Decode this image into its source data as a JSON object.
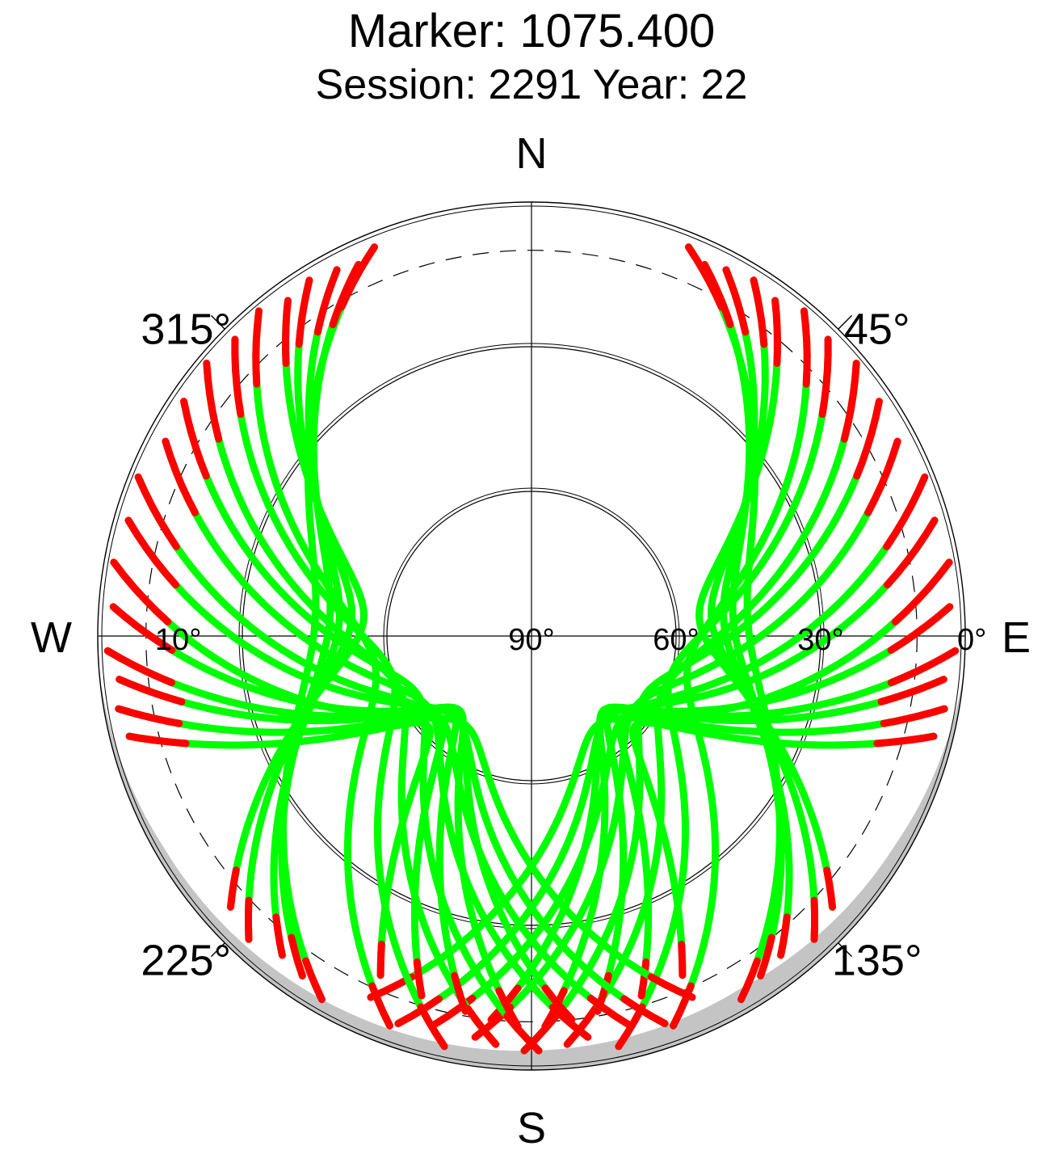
{
  "chart_data": {
    "type": "scatter",
    "projection": "polar-skyplot",
    "title": "Marker: 1075.400",
    "subtitle": "Session: 2291 Year: 22",
    "directions": {
      "north": "N",
      "south": "S",
      "east": "E",
      "west": "W"
    },
    "azimuth_labels": [
      {
        "azimuth": 315,
        "text": "315°"
      },
      {
        "azimuth": 45,
        "text": "45°"
      },
      {
        "azimuth": 225,
        "text": "225°"
      },
      {
        "azimuth": 135,
        "text": "135°"
      }
    ],
    "elevation_labels": [
      {
        "elevation": 10,
        "text": "10°",
        "side": "west"
      },
      {
        "elevation": 90,
        "text": "90°",
        "side": "east"
      },
      {
        "elevation": 60,
        "text": "60°",
        "side": "east"
      },
      {
        "elevation": 30,
        "text": "30°",
        "side": "east"
      },
      {
        "elevation": 0,
        "text": "0°",
        "side": "east"
      }
    ],
    "elevation_rings": [
      30,
      60
    ],
    "cutoff_elevation": 10,
    "radial_scale": "linear-zenith-distance",
    "elevation_range": [
      0,
      90
    ],
    "grid": true,
    "colors": {
      "tracked": "#00ff00",
      "low_quality": "#ff0000",
      "obstruction_mask": "#c4c4c4",
      "grid": "#000000"
    },
    "series": [
      {
        "role": "north-east arcs",
        "arcs": [
          {
            "az_start": 22,
            "el_start": 3,
            "el_max": 45,
            "az_end": 150,
            "el_end": 3
          },
          {
            "az_start": 25,
            "el_start": 5,
            "el_max": 48,
            "az_end": 146,
            "el_end": 5
          },
          {
            "az_start": 28,
            "el_start": 4,
            "el_max": 51,
            "az_end": 142,
            "el_end": 6
          },
          {
            "az_start": 32,
            "el_start": 3,
            "el_max": 53,
            "az_end": 137,
            "el_end": 4
          },
          {
            "az_start": 36,
            "el_start": 4,
            "el_max": 56,
            "az_end": 132,
            "el_end": 6
          },
          {
            "az_start": 40,
            "el_start": 2,
            "el_max": 58,
            "az_end": 160,
            "el_end": 4
          },
          {
            "az_start": 45,
            "el_start": 3,
            "el_max": 60,
            "az_end": 168,
            "el_end": 3
          },
          {
            "az_start": 50,
            "el_start": 2,
            "el_max": 62,
            "az_end": 175,
            "el_end": 5
          },
          {
            "az_start": 56,
            "el_start": 3,
            "el_max": 64,
            "az_end": 181,
            "el_end": 4
          },
          {
            "az_start": 62,
            "el_start": 4,
            "el_max": 65,
            "az_end": 188,
            "el_end": 6
          },
          {
            "az_start": 68,
            "el_start": 2,
            "el_max": 67,
            "az_end": 194,
            "el_end": 7
          },
          {
            "az_start": 74,
            "el_start": 3,
            "el_max": 68,
            "az_end": 199,
            "el_end": 5
          },
          {
            "az_start": 80,
            "el_start": 2,
            "el_max": 70,
            "az_end": 204,
            "el_end": 8
          },
          {
            "az_start": 86,
            "el_start": 3,
            "el_max": 71,
            "az_end": 186,
            "el_end": 10
          },
          {
            "az_start": 92,
            "el_start": 2,
            "el_max": 72,
            "az_end": 178,
            "el_end": 9
          },
          {
            "az_start": 96,
            "el_start": 4,
            "el_max": 71,
            "az_end": 170,
            "el_end": 11
          },
          {
            "az_start": 100,
            "el_start": 3,
            "el_max": 69,
            "az_end": 163,
            "el_end": 12
          },
          {
            "az_start": 104,
            "el_start": 4,
            "el_max": 66,
            "az_end": 156,
            "el_end": 13
          }
        ]
      },
      {
        "role": "north-west arcs",
        "arcs": [
          {
            "az_start": 338,
            "el_start": 3,
            "el_max": 45,
            "az_end": 210,
            "el_end": 3
          },
          {
            "az_start": 335,
            "el_start": 5,
            "el_max": 48,
            "az_end": 214,
            "el_end": 5
          },
          {
            "az_start": 332,
            "el_start": 4,
            "el_max": 51,
            "az_end": 218,
            "el_end": 6
          },
          {
            "az_start": 328,
            "el_start": 3,
            "el_max": 53,
            "az_end": 223,
            "el_end": 4
          },
          {
            "az_start": 324,
            "el_start": 4,
            "el_max": 56,
            "az_end": 228,
            "el_end": 6
          },
          {
            "az_start": 320,
            "el_start": 2,
            "el_max": 58,
            "az_end": 200,
            "el_end": 4
          },
          {
            "az_start": 315,
            "el_start": 3,
            "el_max": 60,
            "az_end": 192,
            "el_end": 3
          },
          {
            "az_start": 310,
            "el_start": 2,
            "el_max": 62,
            "az_end": 185,
            "el_end": 5
          },
          {
            "az_start": 304,
            "el_start": 3,
            "el_max": 64,
            "az_end": 179,
            "el_end": 4
          },
          {
            "az_start": 298,
            "el_start": 4,
            "el_max": 65,
            "az_end": 172,
            "el_end": 6
          },
          {
            "az_start": 292,
            "el_start": 2,
            "el_max": 67,
            "az_end": 166,
            "el_end": 7
          },
          {
            "az_start": 286,
            "el_start": 3,
            "el_max": 68,
            "az_end": 161,
            "el_end": 5
          },
          {
            "az_start": 280,
            "el_start": 2,
            "el_max": 70,
            "az_end": 156,
            "el_end": 8
          },
          {
            "az_start": 274,
            "el_start": 3,
            "el_max": 71,
            "az_end": 174,
            "el_end": 10
          },
          {
            "az_start": 268,
            "el_start": 2,
            "el_max": 72,
            "az_end": 182,
            "el_end": 9
          },
          {
            "az_start": 264,
            "el_start": 4,
            "el_max": 71,
            "az_end": 190,
            "el_end": 11
          },
          {
            "az_start": 260,
            "el_start": 3,
            "el_max": 69,
            "az_end": 197,
            "el_end": 12
          },
          {
            "az_start": 256,
            "el_start": 4,
            "el_max": 66,
            "az_end": 204,
            "el_end": 13
          }
        ]
      }
    ],
    "mask_profile": [
      {
        "azimuth": 95,
        "elevation": 0
      },
      {
        "azimuth": 120,
        "elevation": 3
      },
      {
        "azimuth": 150,
        "elevation": 5
      },
      {
        "azimuth": 180,
        "elevation": 4
      },
      {
        "azimuth": 210,
        "elevation": 3
      },
      {
        "azimuth": 240,
        "elevation": 2
      },
      {
        "azimuth": 265,
        "elevation": 0
      }
    ]
  }
}
